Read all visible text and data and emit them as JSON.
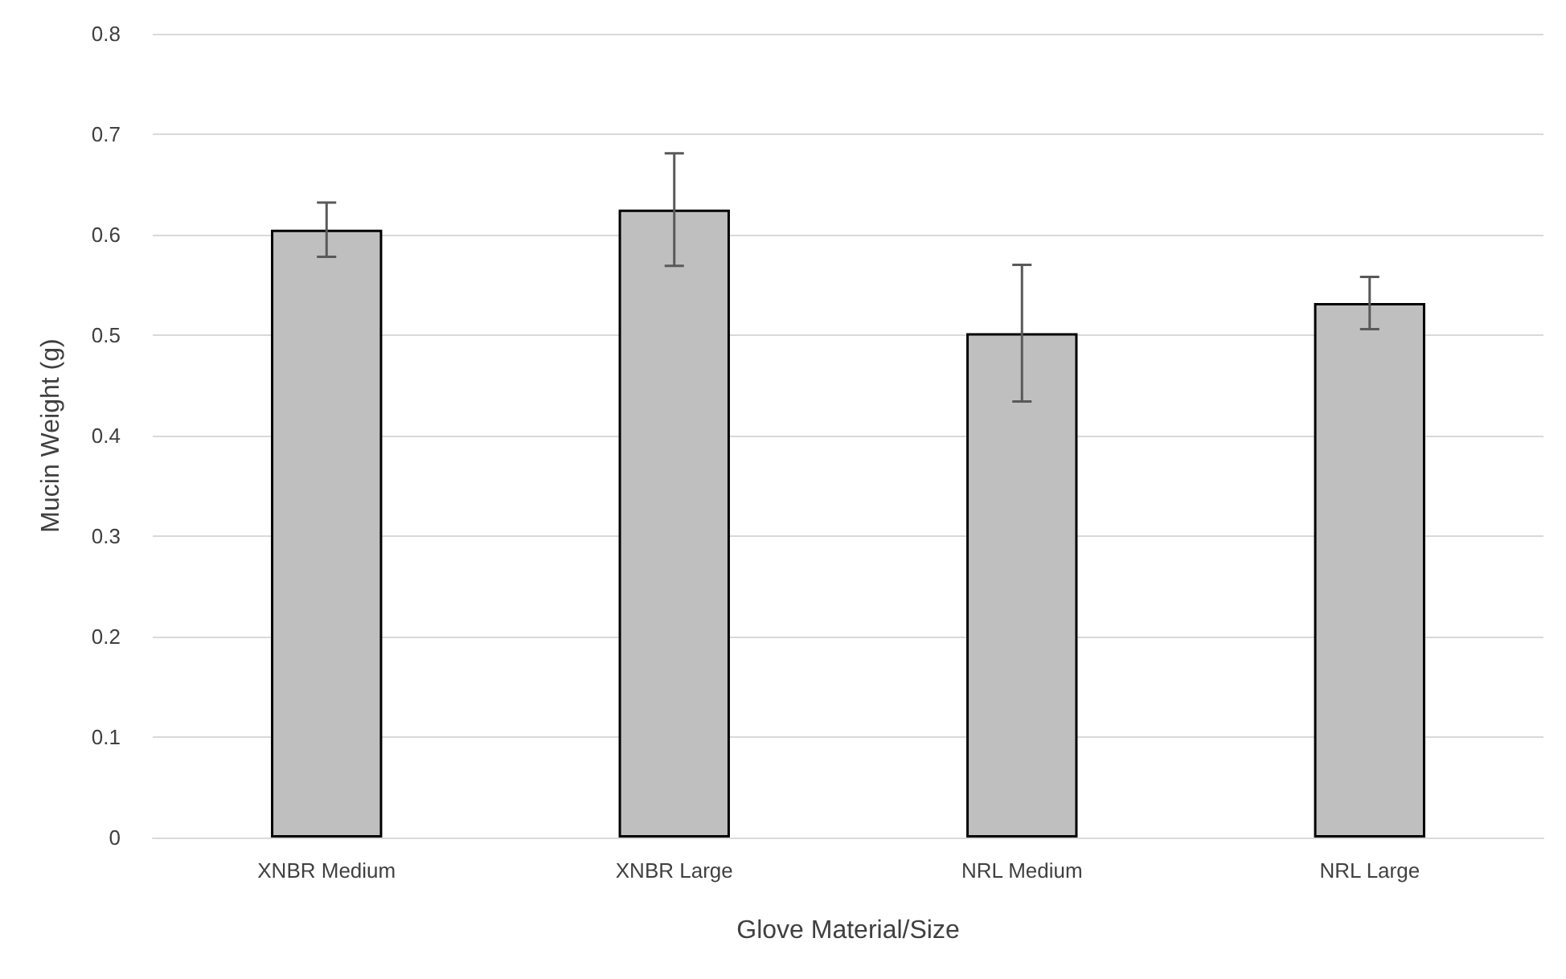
{
  "chart_data": {
    "type": "bar",
    "xlabel": "Glove Material/Size",
    "ylabel": "Mucin Weight (g)",
    "categories": [
      "XNBR Medium",
      "XNBR Large",
      "NRL Medium",
      "NRL Large"
    ],
    "values": [
      0.605,
      0.625,
      0.502,
      0.532
    ],
    "errors": [
      0.027,
      0.056,
      0.068,
      0.026
    ],
    "color": "#bfbfbf",
    "ylim": [
      0,
      0.8
    ],
    "yticks": [
      0,
      0.1,
      0.2,
      0.3,
      0.4,
      0.5,
      0.6,
      0.7,
      0.8
    ],
    "grid": "y"
  }
}
